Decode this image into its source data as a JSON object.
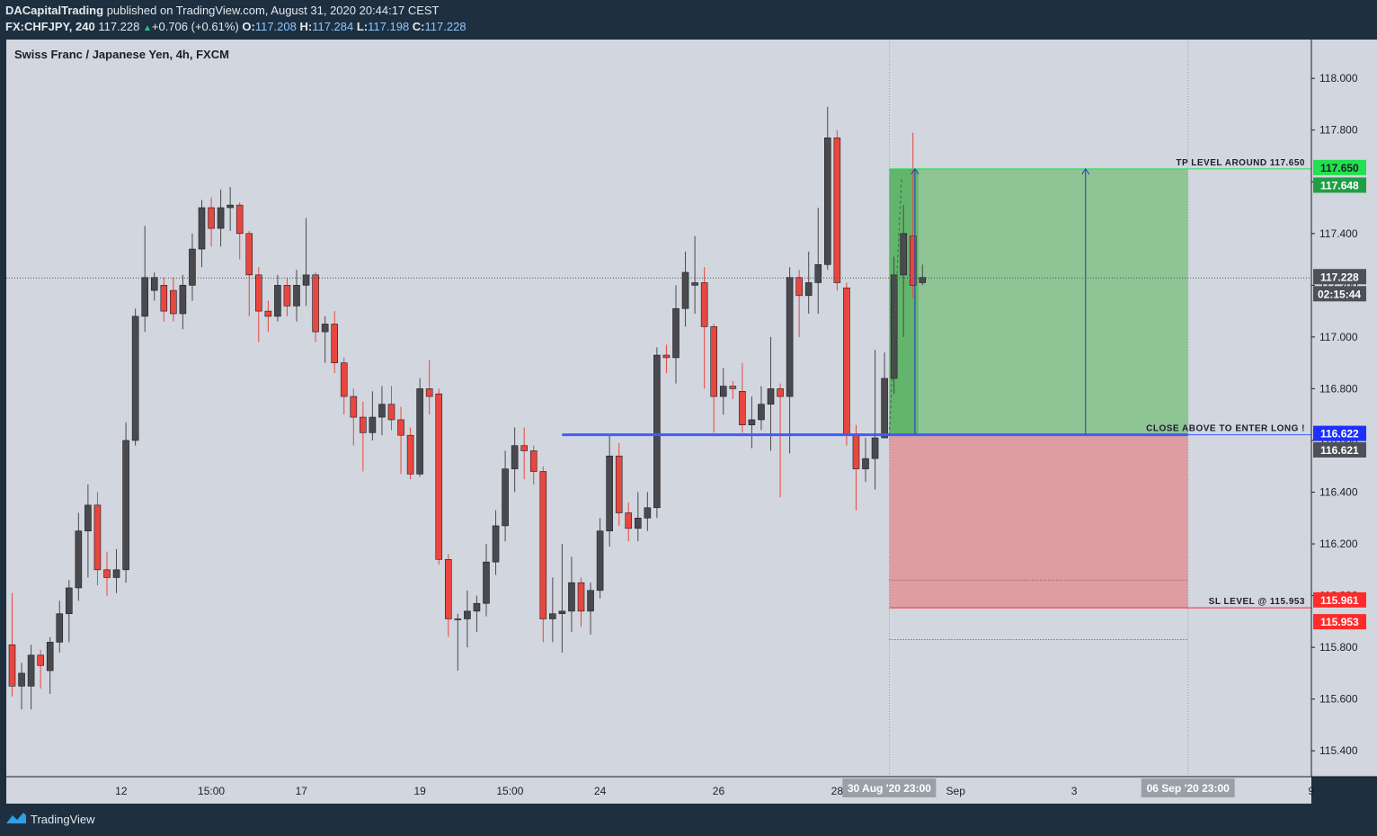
{
  "header": {
    "author": "DACapitalTrading",
    "published_text": "published on TradingView.com, August 31, 2020 20:44:17 CEST",
    "symbol": "FX:CHFJPY, 240",
    "last": "117.228",
    "change": "+0.706 (+0.61%)",
    "o_label": "O:",
    "o_value": "117.208",
    "h_label": "H:",
    "h_value": "117.284",
    "l_label": "L:",
    "l_value": "117.198",
    "c_label": "C:",
    "c_value": "117.228"
  },
  "chart_title": "Swiss Franc / Japanese Yen, 4h, FXCM",
  "footer": {
    "brand": "TradingView"
  },
  "colors": {
    "plot_bg": "#d2d6de",
    "up_candle": "#4a4a4e",
    "down_candle": "#e8473f",
    "entry_line": "#3f5cff",
    "tp_green": "#22e04e",
    "sl_red": "#ff2b2b",
    "profit_zone": "#8fc495",
    "loss_zone": "#de9da1"
  },
  "chart_data": {
    "type": "candlestick",
    "timeframe": "4h",
    "ylim": [
      115.3,
      118.15
    ],
    "y_ticks": [
      "115.400",
      "115.600",
      "115.800",
      "116.000",
      "116.200",
      "116.400",
      "116.600",
      "116.800",
      "117.000",
      "117.200",
      "117.400",
      "117.600",
      "117.800",
      "118.000"
    ],
    "x_ticks": [
      {
        "label": "12",
        "bar": 11.5
      },
      {
        "label": "15:00",
        "bar": 21
      },
      {
        "label": "17",
        "bar": 30.5
      },
      {
        "label": "19",
        "bar": 43
      },
      {
        "label": "15:00",
        "bar": 52.5
      },
      {
        "label": "24",
        "bar": 62
      },
      {
        "label": "26",
        "bar": 74.5
      },
      {
        "label": "28",
        "bar": 87
      },
      {
        "label": "Sep",
        "bar": 99.5
      },
      {
        "label": "3",
        "bar": 112
      },
      {
        "label": "9",
        "bar": 137
      }
    ],
    "x_highlights": [
      {
        "label": "30 Aug '20   23:00",
        "bar": 92.5
      },
      {
        "label": "06 Sep '20   23:00",
        "bar": 124
      }
    ],
    "candles": [
      [
        115.81,
        115.65,
        116.01,
        115.61
      ],
      [
        115.65,
        115.7,
        115.74,
        115.56
      ],
      [
        115.65,
        115.77,
        115.81,
        115.56
      ],
      [
        115.77,
        115.73,
        115.79,
        115.64
      ],
      [
        115.71,
        115.82,
        115.84,
        115.62
      ],
      [
        115.82,
        115.93,
        115.98,
        115.78
      ],
      [
        115.93,
        116.03,
        116.06,
        115.82
      ],
      [
        116.03,
        116.25,
        116.32,
        115.98
      ],
      [
        116.25,
        116.35,
        116.43,
        116.07
      ],
      [
        116.35,
        116.1,
        116.4,
        116.04
      ],
      [
        116.1,
        116.07,
        116.17,
        116.0
      ],
      [
        116.07,
        116.1,
        116.18,
        116.01
      ],
      [
        116.1,
        116.6,
        116.67,
        116.05
      ],
      [
        116.6,
        117.08,
        117.11,
        116.58
      ],
      [
        117.08,
        117.23,
        117.43,
        117.02
      ],
      [
        117.18,
        117.23,
        117.25,
        117.14
      ],
      [
        117.2,
        117.1,
        117.23,
        117.06
      ],
      [
        117.18,
        117.09,
        117.23,
        117.06
      ],
      [
        117.09,
        117.2,
        117.24,
        117.03
      ],
      [
        117.2,
        117.34,
        117.4,
        117.14
      ],
      [
        117.34,
        117.5,
        117.53,
        117.27
      ],
      [
        117.5,
        117.42,
        117.54,
        117.35
      ],
      [
        117.42,
        117.5,
        117.57,
        117.35
      ],
      [
        117.5,
        117.51,
        117.58,
        117.41
      ],
      [
        117.51,
        117.4,
        117.52,
        117.3
      ],
      [
        117.4,
        117.24,
        117.41,
        117.08
      ],
      [
        117.24,
        117.1,
        117.27,
        116.98
      ],
      [
        117.1,
        117.08,
        117.14,
        117.02
      ],
      [
        117.08,
        117.2,
        117.24,
        117.06
      ],
      [
        117.2,
        117.12,
        117.23,
        117.08
      ],
      [
        117.12,
        117.2,
        117.26,
        117.06
      ],
      [
        117.2,
        117.24,
        117.46,
        117.12
      ],
      [
        117.24,
        117.02,
        117.25,
        116.98
      ],
      [
        117.02,
        117.05,
        117.08,
        116.9
      ],
      [
        117.05,
        116.9,
        117.1,
        116.86
      ],
      [
        116.9,
        116.77,
        116.92,
        116.7
      ],
      [
        116.77,
        116.69,
        116.8,
        116.58
      ],
      [
        116.69,
        116.63,
        116.75,
        116.48
      ],
      [
        116.63,
        116.69,
        116.79,
        116.6
      ],
      [
        116.69,
        116.74,
        116.81,
        116.62
      ],
      [
        116.74,
        116.68,
        116.81,
        116.64
      ],
      [
        116.68,
        116.62,
        116.73,
        116.47
      ],
      [
        116.62,
        116.47,
        116.65,
        116.45
      ],
      [
        116.47,
        116.8,
        116.84,
        116.46
      ],
      [
        116.8,
        116.77,
        116.91,
        116.7
      ],
      [
        116.78,
        116.14,
        116.8,
        116.12
      ],
      [
        116.14,
        115.91,
        116.16,
        115.84
      ],
      [
        115.91,
        115.91,
        115.93,
        115.71
      ],
      [
        115.91,
        115.94,
        116.02,
        115.8
      ],
      [
        115.94,
        115.97,
        116.0,
        115.86
      ],
      [
        115.97,
        116.13,
        116.2,
        115.92
      ],
      [
        116.13,
        116.27,
        116.33,
        116.08
      ],
      [
        116.27,
        116.49,
        116.56,
        116.21
      ],
      [
        116.49,
        116.58,
        116.65,
        116.4
      ],
      [
        116.58,
        116.56,
        116.65,
        116.45
      ],
      [
        116.56,
        116.48,
        116.58,
        116.43
      ],
      [
        116.48,
        115.91,
        116.5,
        115.82
      ],
      [
        115.91,
        115.93,
        116.07,
        115.82
      ],
      [
        115.93,
        115.94,
        116.2,
        115.78
      ],
      [
        115.94,
        116.05,
        116.15,
        115.86
      ],
      [
        116.05,
        115.94,
        116.07,
        115.88
      ],
      [
        115.94,
        116.02,
        116.05,
        115.85
      ],
      [
        116.02,
        116.25,
        116.3,
        115.99
      ],
      [
        116.25,
        116.54,
        116.62,
        116.19
      ],
      [
        116.54,
        116.32,
        116.59,
        116.27
      ],
      [
        116.32,
        116.26,
        116.36,
        116.21
      ],
      [
        116.26,
        116.3,
        116.4,
        116.21
      ],
      [
        116.3,
        116.34,
        116.4,
        116.25
      ],
      [
        116.34,
        116.93,
        116.96,
        116.3
      ],
      [
        116.93,
        116.92,
        116.97,
        116.86
      ],
      [
        116.92,
        117.11,
        117.2,
        116.82
      ],
      [
        117.11,
        117.25,
        117.33,
        117.04
      ],
      [
        117.2,
        117.21,
        117.39,
        117.09
      ],
      [
        117.21,
        117.04,
        117.27,
        116.8
      ],
      [
        117.04,
        116.77,
        117.05,
        116.63
      ],
      [
        116.77,
        116.81,
        116.88,
        116.7
      ],
      [
        116.81,
        116.8,
        116.83,
        116.76
      ],
      [
        116.79,
        116.66,
        116.9,
        116.63
      ],
      [
        116.66,
        116.68,
        116.77,
        116.57
      ],
      [
        116.68,
        116.74,
        116.81,
        116.64
      ],
      [
        116.74,
        116.8,
        117.0,
        116.56
      ],
      [
        116.8,
        116.77,
        116.82,
        116.38
      ],
      [
        116.77,
        117.23,
        117.27,
        116.55
      ],
      [
        117.23,
        117.16,
        117.26,
        117.0
      ],
      [
        117.16,
        117.21,
        117.33,
        117.09
      ],
      [
        117.21,
        117.28,
        117.5,
        117.09
      ],
      [
        117.28,
        117.77,
        117.89,
        117.26
      ],
      [
        117.77,
        117.21,
        117.8,
        117.18
      ],
      [
        117.19,
        116.62,
        117.21,
        116.58
      ],
      [
        116.62,
        116.49,
        116.66,
        116.33
      ],
      [
        116.49,
        116.53,
        116.61,
        116.44
      ],
      [
        116.53,
        116.61,
        116.95,
        116.41
      ],
      [
        116.61,
        116.84,
        116.94,
        116.67
      ],
      [
        116.84,
        117.24,
        117.31,
        116.78
      ],
      [
        117.24,
        117.4,
        117.51,
        117.0
      ],
      [
        117.39,
        117.2,
        117.79,
        117.15
      ],
      [
        117.21,
        117.23,
        117.28,
        117.2
      ]
    ],
    "position": {
      "type": "long",
      "entry": 116.622,
      "take_profit": 117.65,
      "stop_loss": 115.953,
      "start_bar": 92.5,
      "end_bar": 124
    },
    "current_price": 117.228,
    "countdown": "02:15:44",
    "annotations": [
      {
        "text": "TP LEVEL AROUND 117.650",
        "price": 117.65
      },
      {
        "text": "CLOSE ABOVE TO ENTER LONG !",
        "price": 116.622
      },
      {
        "text": "SL LEVEL @ 115.953",
        "price": 115.953
      }
    ],
    "price_labels": [
      {
        "text": "117.650",
        "price": 117.65,
        "color": "#22e04e",
        "text_color": "#1b1f28"
      },
      {
        "text": "117.648",
        "price": 117.648,
        "color": "#1f9f44",
        "text_color": "#ffffff"
      },
      {
        "text": "117.228",
        "price": 117.228,
        "color": "#4d5056",
        "text_color": "#ffffff"
      },
      {
        "text": "116.622",
        "price": 116.622,
        "color": "#1f2fff",
        "text_color": "#ffffff"
      },
      {
        "text": "116.621",
        "price": 116.621,
        "color": "#4d5056",
        "text_color": "#ffffff"
      },
      {
        "text": "115.961",
        "price": 115.961,
        "color": "#ff2b2b",
        "text_color": "#ffffff"
      },
      {
        "text": "115.953",
        "price": 115.953,
        "color": "#ff2b2b",
        "text_color": "#ffffff"
      }
    ]
  }
}
